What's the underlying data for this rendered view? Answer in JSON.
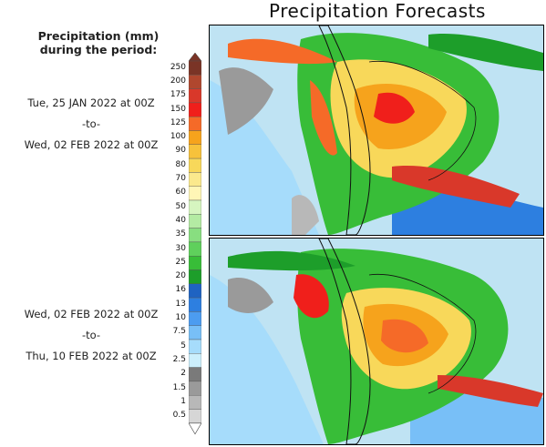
{
  "title": "Precipitation Forecasts",
  "legend": {
    "title_line1": "Precipitation (mm)",
    "title_line2": "during the period:",
    "levels": [
      "250",
      "200",
      "175",
      "150",
      "125",
      "100",
      "90",
      "80",
      "70",
      "60",
      "50",
      "40",
      "35",
      "30",
      "25",
      "20",
      "16",
      "13",
      "10",
      "7.5",
      "5",
      "2.5",
      "2",
      "1.5",
      "1",
      "0.5"
    ],
    "colors": [
      "#7a3426",
      "#b0472e",
      "#d9382a",
      "#f01f1b",
      "#f56a28",
      "#f6a31c",
      "#f7c23b",
      "#f8d85a",
      "#fbe98d",
      "#fff6b6",
      "#d6f5c0",
      "#b4eba3",
      "#88de80",
      "#5fd05c",
      "#38bd38",
      "#1d9e2a",
      "#1f63c2",
      "#2d7fe0",
      "#4c9cf0",
      "#78bff7",
      "#a6dcfb",
      "#cceffc",
      "#7a7a7a",
      "#9a9a9a",
      "#b8b8b8",
      "#d6d6d6"
    ]
  },
  "periods": [
    {
      "start": "Tue, 25 JAN 2022 at 00Z",
      "sep": "-to-",
      "end": "Wed, 02 FEB 2022 at 00Z"
    },
    {
      "start": "Wed, 02 FEB 2022 at 00Z",
      "sep": "-to-",
      "end": "Thu, 10 FEB 2022 at 00Z"
    }
  ],
  "panels": [
    {
      "name": "forecast-map-week1"
    },
    {
      "name": "forecast-map-week2"
    }
  ]
}
